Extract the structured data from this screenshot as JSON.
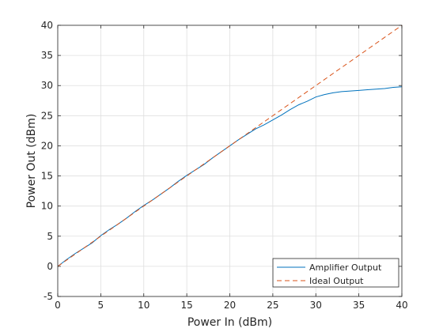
{
  "chart_data": {
    "type": "line",
    "title": "",
    "xlabel": "Power In (dBm)",
    "ylabel": "Power Out (dBm)",
    "xlim": [
      0,
      40
    ],
    "ylim": [
      -5,
      40
    ],
    "xticks": [
      0,
      5,
      10,
      15,
      20,
      25,
      30,
      35,
      40
    ],
    "yticks": [
      -5,
      0,
      5,
      10,
      15,
      20,
      25,
      30,
      35,
      40
    ],
    "grid": true,
    "legend_position": "bottom-right",
    "series": [
      {
        "name": "Amplifier Output",
        "color": "#0072BD",
        "style": "solid",
        "x": [
          0,
          1,
          2,
          3,
          4,
          5,
          6,
          7,
          8,
          9,
          10,
          11,
          12,
          13,
          14,
          15,
          16,
          17,
          18,
          19,
          20,
          21,
          22,
          23,
          24,
          25,
          26,
          27,
          28,
          29,
          30,
          31,
          32,
          33,
          34,
          35,
          36,
          37,
          38,
          39,
          40
        ],
        "y": [
          0,
          1.1,
          2.1,
          3,
          3.9,
          5.1,
          6.1,
          7,
          8,
          9.1,
          10.1,
          11,
          12,
          13,
          14.1,
          15.1,
          16,
          16.9,
          18,
          19,
          20,
          21,
          21.9,
          22.8,
          23.5,
          24.3,
          25.1,
          26,
          26.8,
          27.4,
          28.1,
          28.5,
          28.8,
          29,
          29.1,
          29.2,
          29.3,
          29.4,
          29.5,
          29.7,
          29.8
        ]
      },
      {
        "name": "Ideal Output",
        "color": "#D95319",
        "style": "dashed",
        "x": [
          0,
          40
        ],
        "y": [
          0,
          40
        ]
      }
    ]
  },
  "colors": {
    "axis": "#262626",
    "grid": "#dfdfdf",
    "background": "#ffffff"
  }
}
